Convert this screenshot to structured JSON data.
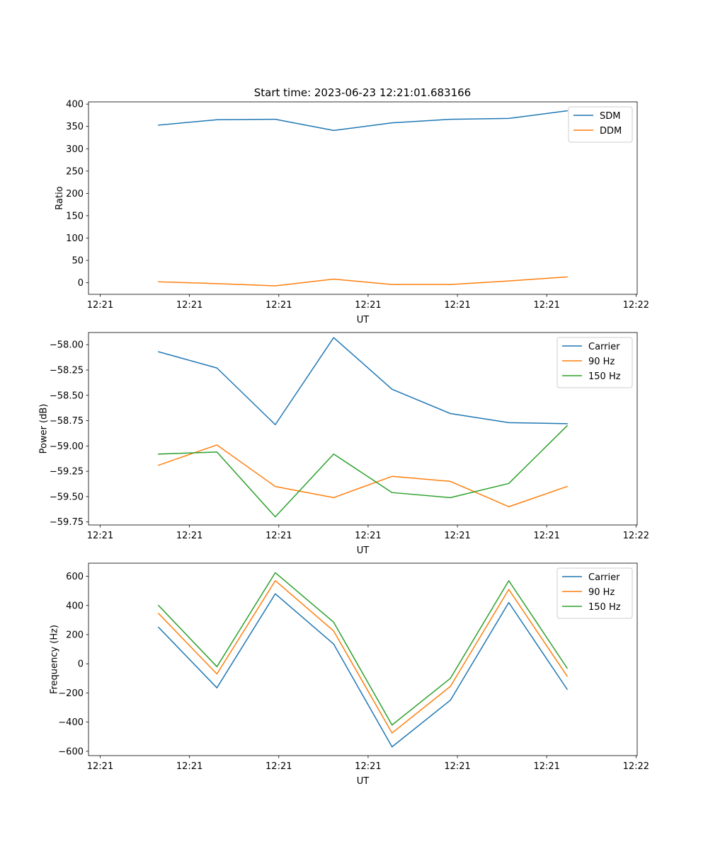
{
  "figure": {
    "title": "Start time: 2023-06-23 12:21:01.683166"
  },
  "chart_data": [
    {
      "type": "line",
      "title": "Start time: 2023-06-23 12:21:01.683166",
      "xlabel": "UT",
      "ylabel": "Ratio",
      "x": [
        1,
        2,
        3,
        4,
        5,
        6,
        7,
        8
      ],
      "x_tick_positions": [
        0,
        1.53,
        3.06,
        4.59,
        6.12,
        7.65,
        9.18
      ],
      "x_tick_labels": [
        "12:21",
        "12:21",
        "12:21",
        "12:21",
        "12:21",
        "12:21",
        "12:22"
      ],
      "xlim": [
        -0.2,
        9.2
      ],
      "ylim": [
        -26,
        405
      ],
      "y_ticks": [
        0,
        50,
        100,
        150,
        200,
        250,
        300,
        350,
        400
      ],
      "y_tick_labels": [
        "0",
        "50",
        "100",
        "150",
        "200",
        "250",
        "300",
        "350",
        "400"
      ],
      "legend_position": "top-right",
      "grid": false,
      "series": [
        {
          "name": "SDM",
          "color": "#1f77b4",
          "values": [
            353,
            365,
            366,
            341,
            358,
            366,
            368,
            385
          ]
        },
        {
          "name": "DDM",
          "color": "#ff7f0e",
          "values": [
            2,
            -2,
            -7,
            8,
            -4,
            -4,
            4,
            13
          ]
        }
      ]
    },
    {
      "type": "line",
      "title": "",
      "xlabel": "UT",
      "ylabel": "Power (dB)",
      "x": [
        1,
        2,
        3,
        4,
        5,
        6,
        7,
        8
      ],
      "x_tick_positions": [
        0,
        1.53,
        3.06,
        4.59,
        6.12,
        7.65,
        9.18
      ],
      "x_tick_labels": [
        "12:21",
        "12:21",
        "12:21",
        "12:21",
        "12:21",
        "12:21",
        "12:22"
      ],
      "xlim": [
        -0.2,
        9.2
      ],
      "ylim": [
        -59.78,
        -57.88
      ],
      "y_ticks": [
        -58.0,
        -58.25,
        -58.5,
        -58.75,
        -59.0,
        -59.25,
        -59.5,
        -59.75
      ],
      "y_tick_labels": [
        "−58.00",
        "−58.25",
        "−58.50",
        "−58.75",
        "−59.00",
        "−59.25",
        "−59.50",
        "−59.75"
      ],
      "legend_position": "top-right",
      "grid": false,
      "series": [
        {
          "name": "Carrier",
          "color": "#1f77b4",
          "values": [
            -58.07,
            -58.23,
            -58.79,
            -57.93,
            -58.44,
            -58.68,
            -58.77,
            -58.78
          ]
        },
        {
          "name": "90 Hz",
          "color": "#ff7f0e",
          "values": [
            -59.19,
            -58.99,
            -59.4,
            -59.51,
            -59.3,
            -59.35,
            -59.6,
            -59.4
          ]
        },
        {
          "name": "150 Hz",
          "color": "#2ca02c",
          "values": [
            -59.08,
            -59.06,
            -59.7,
            -59.08,
            -59.46,
            -59.51,
            -59.37,
            -58.8
          ]
        }
      ]
    },
    {
      "type": "line",
      "title": "",
      "xlabel": "UT",
      "ylabel": "Frequency (Hz)",
      "x": [
        1,
        2,
        3,
        4,
        5,
        6,
        7,
        8
      ],
      "x_tick_positions": [
        0,
        1.53,
        3.06,
        4.59,
        6.12,
        7.65,
        9.18
      ],
      "x_tick_labels": [
        "12:21",
        "12:21",
        "12:21",
        "12:21",
        "12:21",
        "12:21",
        "12:22"
      ],
      "xlim": [
        -0.2,
        9.2
      ],
      "ylim": [
        -630,
        690
      ],
      "y_ticks": [
        -600,
        -400,
        -200,
        0,
        200,
        400,
        600
      ],
      "y_tick_labels": [
        "−600",
        "−400",
        "−200",
        "0",
        "200",
        "400",
        "600"
      ],
      "legend_position": "top-right",
      "grid": false,
      "series": [
        {
          "name": "Carrier",
          "color": "#1f77b4",
          "values": [
            250,
            -165,
            480,
            135,
            -570,
            -250,
            420,
            -175
          ]
        },
        {
          "name": "90 Hz",
          "color": "#ff7f0e",
          "values": [
            345,
            -70,
            570,
            225,
            -475,
            -155,
            510,
            -85
          ]
        },
        {
          "name": "150 Hz",
          "color": "#2ca02c",
          "values": [
            400,
            -20,
            625,
            285,
            -420,
            -100,
            570,
            -30
          ]
        }
      ]
    }
  ]
}
